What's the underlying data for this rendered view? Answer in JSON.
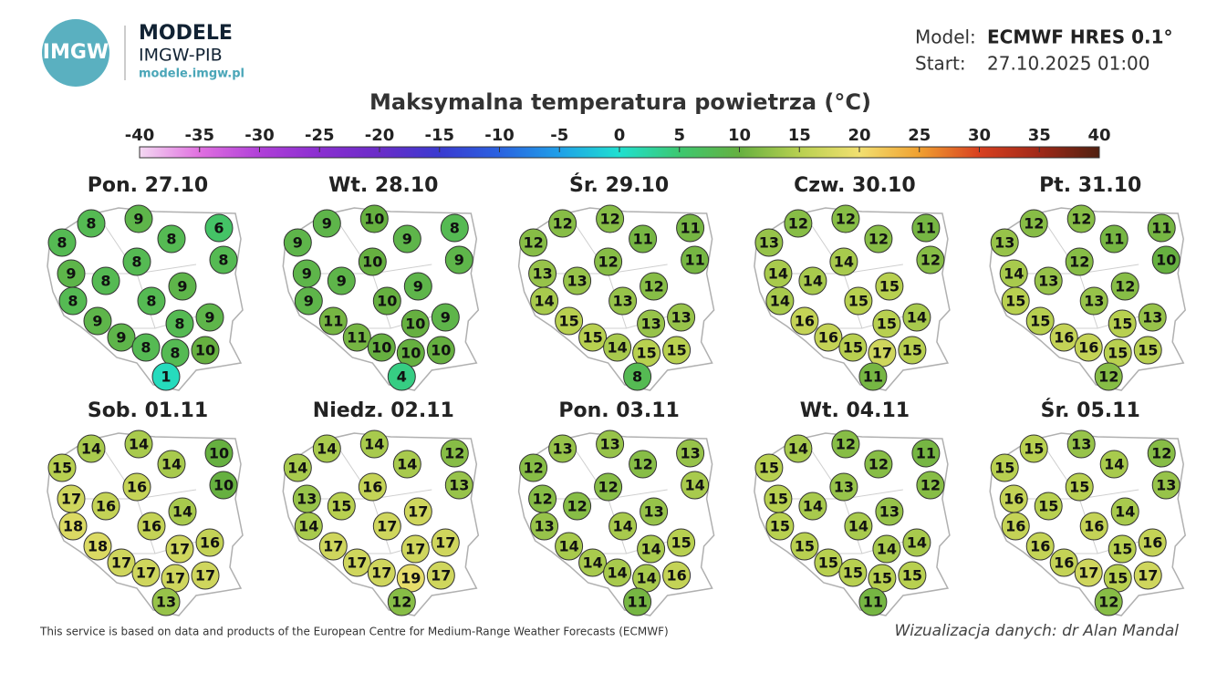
{
  "header": {
    "logo": "IMGW",
    "brand": "MODELE",
    "org": "IMGW-PIB",
    "url": "modele.imgw.pl",
    "model_label": "Model:",
    "model": "ECMWF HRES 0.1°",
    "start_label": "Start:",
    "start": "27.10.2025 01:00"
  },
  "title": "Maksymalna temperatura powietrza (°C)",
  "colorbar": {
    "ticks": [
      -40,
      -35,
      -30,
      -25,
      -20,
      -15,
      -10,
      -5,
      0,
      5,
      10,
      15,
      20,
      25,
      30,
      35,
      40
    ],
    "colors": [
      "#f4d8f2",
      "#e070e0",
      "#b040d8",
      "#8a2ed0",
      "#6a2cc8",
      "#3a3ad0",
      "#2a62e0",
      "#20a0e8",
      "#20e0d0",
      "#3cc870",
      "#66b040",
      "#b8d050",
      "#f2e070",
      "#f0a030",
      "#d84020",
      "#a02818",
      "#502010"
    ]
  },
  "days": [
    {
      "label": "Pon. 27.10",
      "values": [
        8,
        9,
        6,
        8,
        8,
        8,
        9,
        8,
        8,
        9,
        8,
        8,
        9,
        8,
        9,
        9,
        8,
        8,
        10,
        1
      ]
    },
    {
      "label": "Wt. 28.10",
      "values": [
        9,
        10,
        8,
        9,
        9,
        9,
        9,
        10,
        9,
        9,
        9,
        10,
        11,
        10,
        9,
        11,
        10,
        10,
        10,
        4
      ]
    },
    {
      "label": "Śr. 29.10",
      "values": [
        12,
        12,
        11,
        12,
        11,
        11,
        13,
        12,
        13,
        12,
        14,
        13,
        15,
        13,
        13,
        15,
        14,
        15,
        15,
        8
      ]
    },
    {
      "label": "Czw. 30.10",
      "values": [
        12,
        12,
        11,
        13,
        12,
        12,
        14,
        14,
        14,
        15,
        14,
        15,
        16,
        15,
        14,
        16,
        15,
        17,
        15,
        11
      ]
    },
    {
      "label": "Pt. 31.10",
      "values": [
        12,
        12,
        11,
        13,
        11,
        10,
        14,
        12,
        13,
        12,
        15,
        13,
        15,
        15,
        13,
        16,
        16,
        15,
        15,
        12
      ]
    },
    {
      "label": "Sob. 01.11",
      "values": [
        14,
        14,
        10,
        15,
        14,
        10,
        17,
        16,
        16,
        14,
        18,
        16,
        18,
        17,
        16,
        17,
        17,
        17,
        17,
        13
      ]
    },
    {
      "label": "Niedz. 02.11",
      "values": [
        14,
        14,
        12,
        14,
        14,
        13,
        13,
        16,
        15,
        17,
        14,
        17,
        17,
        17,
        17,
        17,
        17,
        19,
        17,
        12
      ]
    },
    {
      "label": "Pon. 03.11",
      "values": [
        13,
        13,
        13,
        12,
        12,
        14,
        12,
        12,
        12,
        13,
        13,
        14,
        14,
        14,
        15,
        14,
        14,
        14,
        16,
        11
      ]
    },
    {
      "label": "Wt. 04.11",
      "values": [
        14,
        12,
        11,
        15,
        12,
        12,
        15,
        13,
        14,
        13,
        15,
        14,
        15,
        14,
        14,
        15,
        15,
        15,
        15,
        11
      ]
    },
    {
      "label": "Śr. 05.11",
      "values": [
        15,
        13,
        12,
        15,
        14,
        13,
        16,
        15,
        15,
        14,
        16,
        16,
        16,
        15,
        16,
        16,
        17,
        15,
        17,
        12
      ]
    }
  ],
  "footer": {
    "left": "This service is based on data and products of the European Centre for Medium-Range Weather Forecasts (ECMWF)",
    "right": "Wizualizacja danych: dr Alan Mandal"
  }
}
